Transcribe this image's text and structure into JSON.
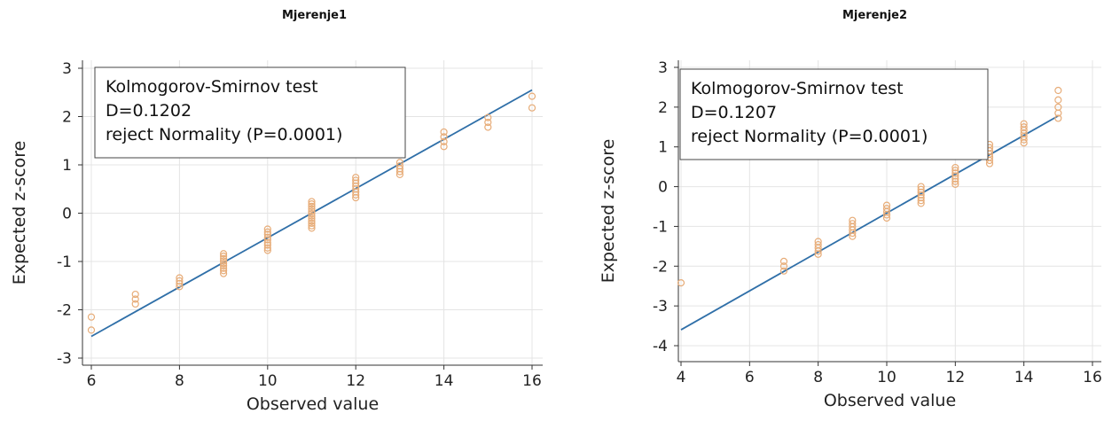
{
  "chart_data": [
    {
      "type": "scatter",
      "title": "Mjerenje1",
      "xlabel": "Observed value",
      "ylabel": "Expected z-score",
      "xlim": [
        6,
        16
      ],
      "ylim": [
        -3,
        3
      ],
      "xticks": [
        "6",
        "8",
        "10",
        "12",
        "14",
        "16"
      ],
      "yticks": [
        "3",
        "2",
        "1",
        "0",
        "-1",
        "-2",
        "-3"
      ],
      "grid": true,
      "annotation": [
        "Kolmogorov-Smirnov test",
        "D=0.1202",
        "reject Normality (P=0.0001)"
      ],
      "fit_line": {
        "x": [
          6,
          16
        ],
        "y": [
          -2.55,
          2.55
        ]
      },
      "points": [
        {
          "x": 6,
          "y": [
            -2.15,
            -2.42
          ]
        },
        {
          "x": 7,
          "y": [
            -1.68,
            -1.78,
            -1.88
          ]
        },
        {
          "x": 8,
          "y": [
            -1.34,
            -1.4,
            -1.46,
            -1.52
          ]
        },
        {
          "x": 9,
          "y": [
            -0.84,
            -0.89,
            -0.94,
            -0.99,
            -1.04,
            -1.09,
            -1.14,
            -1.19,
            -1.25
          ]
        },
        {
          "x": 10,
          "y": [
            -0.33,
            -0.39,
            -0.44,
            -0.5,
            -0.55,
            -0.61,
            -0.66,
            -0.72,
            -0.77
          ]
        },
        {
          "x": 11,
          "y": [
            0.24,
            0.19,
            0.14,
            0.09,
            0.04,
            -0.01,
            -0.06,
            -0.11,
            -0.16,
            -0.21,
            -0.26,
            -0.31
          ]
        },
        {
          "x": 12,
          "y": [
            0.74,
            0.68,
            0.62,
            0.56,
            0.5,
            0.44,
            0.38,
            0.32
          ]
        },
        {
          "x": 13,
          "y": [
            1.05,
            0.98,
            0.92,
            0.86,
            0.8
          ]
        },
        {
          "x": 14,
          "y": [
            1.68,
            1.58,
            1.48,
            1.38
          ]
        },
        {
          "x": 15,
          "y": [
            1.98,
            1.88,
            1.78
          ]
        },
        {
          "x": 16,
          "y": [
            2.42,
            2.18
          ]
        }
      ]
    },
    {
      "type": "scatter",
      "title": "Mjerenje2",
      "xlabel": "Observed value",
      "ylabel": "Expected z-score",
      "xlim": [
        4,
        16
      ],
      "ylim": [
        -4,
        3
      ],
      "xticks": [
        "4",
        "6",
        "8",
        "10",
        "12",
        "14",
        "16"
      ],
      "yticks": [
        "3",
        "2",
        "1",
        "0",
        "-1",
        "-2",
        "-3",
        "-4"
      ],
      "grid": true,
      "annotation": [
        "Kolmogorov-Smirnov test",
        "D=0.1207",
        "reject Normality (P=0.0001)"
      ],
      "fit_line": {
        "x": [
          4,
          15
        ],
        "y": [
          -3.6,
          1.78
        ]
      },
      "points": [
        {
          "x": 4,
          "y": [
            -2.42
          ]
        },
        {
          "x": 7,
          "y": [
            -1.88,
            -2.0,
            -2.12
          ]
        },
        {
          "x": 8,
          "y": [
            -1.38,
            -1.46,
            -1.54,
            -1.62,
            -1.7
          ]
        },
        {
          "x": 9,
          "y": [
            -0.85,
            -0.93,
            -1.01,
            -1.09,
            -1.17,
            -1.25
          ]
        },
        {
          "x": 10,
          "y": [
            -0.47,
            -0.55,
            -0.63,
            -0.71,
            -0.79
          ]
        },
        {
          "x": 11,
          "y": [
            0.0,
            -0.07,
            -0.14,
            -0.21,
            -0.28,
            -0.35,
            -0.42
          ]
        },
        {
          "x": 12,
          "y": [
            0.48,
            0.41,
            0.34,
            0.27,
            0.2,
            0.13,
            0.06
          ]
        },
        {
          "x": 13,
          "y": [
            1.06,
            0.98,
            0.9,
            0.82,
            0.74,
            0.66,
            0.58
          ]
        },
        {
          "x": 14,
          "y": [
            1.58,
            1.5,
            1.42,
            1.34,
            1.26,
            1.18,
            1.1
          ]
        },
        {
          "x": 15,
          "y": [
            2.42,
            2.18,
            2.0,
            1.85,
            1.72
          ]
        }
      ]
    }
  ]
}
